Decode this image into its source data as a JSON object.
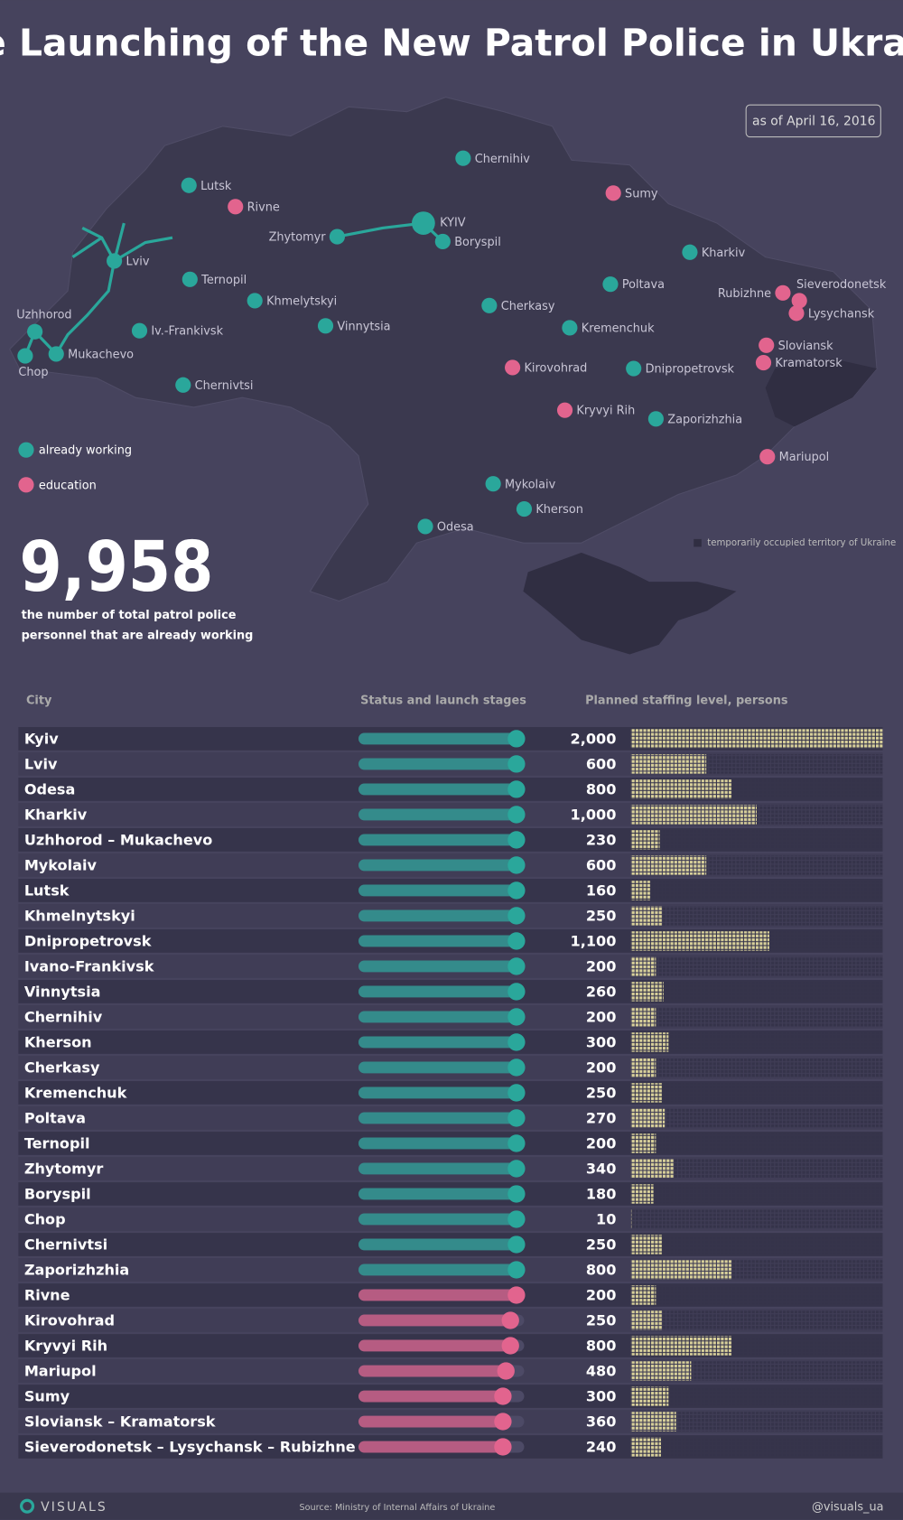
{
  "title": "The Launching of the New Patrol Police in Ukraine",
  "date": "as of April 16, 2016",
  "map": {
    "cities": [
      {
        "name": "Chernihiv",
        "color": "#2aa79b"
      },
      {
        "name": "Sumy",
        "color": "#e2648e"
      },
      {
        "name": "Lutsk",
        "color": "#2aa79b"
      },
      {
        "name": "Rivne",
        "color": "#e2648e"
      },
      {
        "name": "Zhytomyr",
        "color": "#2aa79b"
      },
      {
        "name": "KYIV",
        "color": "#2aa79b"
      },
      {
        "name": "Boryspil",
        "color": "#2aa79b"
      },
      {
        "name": "Kharkiv",
        "color": "#2aa79b"
      },
      {
        "name": "Lviv",
        "color": "#2aa79b"
      },
      {
        "name": "Ternopil",
        "color": "#2aa79b"
      },
      {
        "name": "Khmelytskyi",
        "color": "#2aa79b"
      },
      {
        "name": "Poltava",
        "color": "#2aa79b"
      },
      {
        "name": "Rubizhne",
        "color": "#e2648e"
      },
      {
        "name": "Sieverodonetsk",
        "color": "#e2648e"
      },
      {
        "name": "Lysychansk",
        "color": "#e2648e"
      },
      {
        "name": "Uzhhorod",
        "color": "#2aa79b"
      },
      {
        "name": "Iv.-Frankivsk",
        "color": "#2aa79b"
      },
      {
        "name": "Vinnytsia",
        "color": "#2aa79b"
      },
      {
        "name": "Cherkasy",
        "color": "#2aa79b"
      },
      {
        "name": "Kremenchuk",
        "color": "#2aa79b"
      },
      {
        "name": "Mukachevo",
        "color": "#2aa79b"
      },
      {
        "name": "Chop",
        "color": "#2aa79b"
      },
      {
        "name": "Sloviansk",
        "color": "#e2648e"
      },
      {
        "name": "Kramatorsk",
        "color": "#e2648e"
      },
      {
        "name": "Kirovohrad",
        "color": "#e2648e"
      },
      {
        "name": "Dnipropetrovsk",
        "color": "#2aa79b"
      },
      {
        "name": "Chernivtsi",
        "color": "#2aa79b"
      },
      {
        "name": "Kryvyi Rih",
        "color": "#e2648e"
      },
      {
        "name": "Zaporizhzhia",
        "color": "#2aa79b"
      },
      {
        "name": "Mariupol",
        "color": "#e2648e"
      },
      {
        "name": "Mykolaiv",
        "color": "#2aa79b"
      },
      {
        "name": "Kherson",
        "color": "#2aa79b"
      },
      {
        "name": "Odesa",
        "color": "#2aa79b"
      }
    ],
    "legend": [
      {
        "label": "already working",
        "color": "#2aa79b"
      },
      {
        "label": "education",
        "color": "#e2648e"
      }
    ],
    "occupied_label": "temporarily occupied territory of Ukraine"
  },
  "stat": {
    "value": "9,958",
    "text": [
      "the number of total patrol police",
      "personnel that are already working"
    ]
  },
  "table": {
    "headers": [
      "City",
      "Status and launch stages",
      "Planned staffing level, persons"
    ],
    "rows": [
      {
        "city": "Kyiv",
        "stage": 1,
        "color": "#2aa79b",
        "staffing": 2000,
        "staffing_label": "2,000"
      },
      {
        "city": "Lviv",
        "stage": 1,
        "color": "#2aa79b",
        "staffing": 600
      },
      {
        "city": "Odesa",
        "stage": 1,
        "color": "#2aa79b",
        "staffing": 800
      },
      {
        "city": "Kharkiv",
        "stage": 1,
        "color": "#2aa79b",
        "staffing": 1000,
        "staffing_label": "1,000"
      },
      {
        "city": "Uzhhorod – Mukachevo",
        "stage": 1,
        "color": "#2aa79b",
        "staffing": 230
      },
      {
        "city": "Mykolaiv",
        "stage": 1,
        "color": "#2aa79b",
        "staffing": 600
      },
      {
        "city": "Lutsk",
        "stage": 1,
        "color": "#2aa79b",
        "staffing": 160
      },
      {
        "city": "Khmelnytskyi",
        "stage": 1,
        "color": "#2aa79b",
        "staffing": 250
      },
      {
        "city": "Dnipropetrovsk",
        "stage": 1,
        "color": "#2aa79b",
        "staffing": 1100,
        "staffing_label": "1,100"
      },
      {
        "city": "Ivano-Frankivsk",
        "stage": 1,
        "color": "#2aa79b",
        "staffing": 200
      },
      {
        "city": "Vinnytsia",
        "stage": 1,
        "color": "#2aa79b",
        "staffing": 260
      },
      {
        "city": "Chernihiv",
        "stage": 1,
        "color": "#2aa79b",
        "staffing": 200
      },
      {
        "city": "Kherson",
        "stage": 1,
        "color": "#2aa79b",
        "staffing": 300
      },
      {
        "city": "Cherkasy",
        "stage": 1,
        "color": "#2aa79b",
        "staffing": 200
      },
      {
        "city": "Kremenchuk",
        "stage": 1,
        "color": "#2aa79b",
        "staffing": 250
      },
      {
        "city": "Poltava",
        "stage": 1,
        "color": "#2aa79b",
        "staffing": 270
      },
      {
        "city": "Ternopil",
        "stage": 1,
        "color": "#2aa79b",
        "staffing": 200
      },
      {
        "city": "Zhytomyr",
        "stage": 1,
        "color": "#2aa79b",
        "staffing": 340
      },
      {
        "city": "Boryspil",
        "stage": 1,
        "color": "#2aa79b",
        "staffing": 180
      },
      {
        "city": "Chop",
        "stage": 1,
        "color": "#2aa79b",
        "staffing": 10
      },
      {
        "city": "Chernivtsi",
        "stage": 1,
        "color": "#2aa79b",
        "staffing": 250
      },
      {
        "city": "Zaporizhzhia",
        "stage": 1,
        "color": "#2aa79b",
        "staffing": 800
      },
      {
        "city": "Rivne",
        "stage": 1,
        "color": "#e2648e",
        "staffing": 200
      },
      {
        "city": "Kirovohrad",
        "stage": 0.96,
        "color": "#e2648e",
        "staffing": 250
      },
      {
        "city": "Kryvyi Rih",
        "stage": 0.96,
        "color": "#e2648e",
        "staffing": 800
      },
      {
        "city": "Mariupol",
        "stage": 0.93,
        "color": "#e2648e",
        "staffing": 480
      },
      {
        "city": "Sumy",
        "stage": 0.91,
        "color": "#e2648e",
        "staffing": 300
      },
      {
        "city": "Sloviansk – Kramatorsk",
        "stage": 0.91,
        "color": "#e2648e",
        "staffing": 360
      },
      {
        "city": "Sieverodonetsk – Lysychansk – Rubizhne",
        "stage": 0.91,
        "color": "#e2648e",
        "staffing": 240
      }
    ]
  },
  "footer": {
    "brand": "VISUALS",
    "source": "Source: Ministry of Internal Affairs of Ukraine",
    "handle": "@visuals_ua"
  }
}
